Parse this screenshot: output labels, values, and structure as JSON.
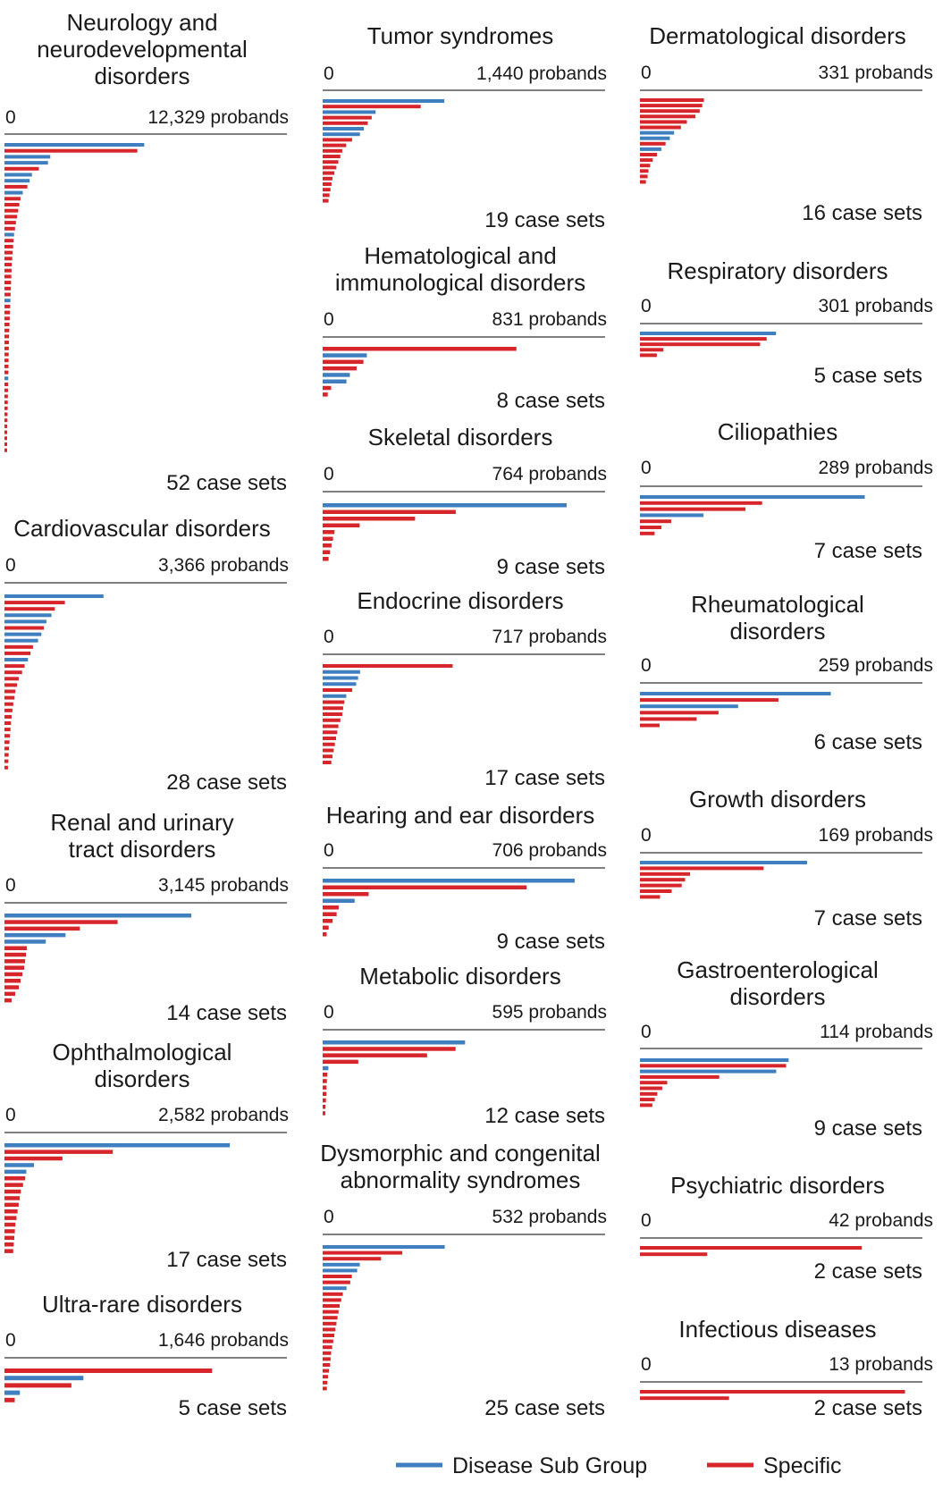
{
  "chart_data": [
    {
      "type": "bar",
      "title": "Neurology and neurodevelopmental disorders",
      "axis_min_label": "0",
      "max_label": "12,329 probands",
      "xlim": [
        0,
        12329
      ],
      "case_sets_label": "52 case sets",
      "bars": [
        [
          "b",
          6100
        ],
        [
          "r",
          5800
        ],
        [
          "b",
          2000
        ],
        [
          "b",
          1900
        ],
        [
          "r",
          1500
        ],
        [
          "b",
          1200
        ],
        [
          "b",
          1100
        ],
        [
          "r",
          1000
        ],
        [
          "b",
          800
        ],
        [
          "r",
          700
        ],
        [
          "r",
          650
        ],
        [
          "r",
          600
        ],
        [
          "r",
          550
        ],
        [
          "r",
          500
        ],
        [
          "r",
          460
        ],
        [
          "b",
          420
        ],
        [
          "r",
          400
        ],
        [
          "r",
          380
        ],
        [
          "r",
          360
        ],
        [
          "r",
          340
        ],
        [
          "r",
          320
        ],
        [
          "r",
          310
        ],
        [
          "r",
          300
        ],
        [
          "r",
          290
        ],
        [
          "r",
          280
        ],
        [
          "r",
          270
        ],
        [
          "b",
          260
        ],
        [
          "r",
          250
        ],
        [
          "r",
          240
        ],
        [
          "r",
          230
        ],
        [
          "r",
          220
        ],
        [
          "r",
          210
        ],
        [
          "r",
          200
        ],
        [
          "r",
          195
        ],
        [
          "r",
          190
        ],
        [
          "r",
          185
        ],
        [
          "r",
          180
        ],
        [
          "r",
          175
        ],
        [
          "r",
          170
        ],
        [
          "b",
          165
        ],
        [
          "r",
          160
        ],
        [
          "r",
          155
        ],
        [
          "r",
          150
        ],
        [
          "r",
          145
        ],
        [
          "r",
          140
        ],
        [
          "r",
          135
        ],
        [
          "r",
          130
        ],
        [
          "r",
          125
        ],
        [
          "r",
          120
        ],
        [
          "r",
          115
        ],
        [
          "r",
          110
        ],
        [
          "r",
          105
        ]
      ]
    },
    {
      "type": "bar",
      "title": "Cardiovascular disorders",
      "axis_min_label": "0",
      "max_label": "3,366 probands",
      "xlim": [
        0,
        3366
      ],
      "case_sets_label": "28 case sets",
      "bars": [
        [
          "b",
          1180
        ],
        [
          "r",
          720
        ],
        [
          "r",
          600
        ],
        [
          "b",
          560
        ],
        [
          "b",
          500
        ],
        [
          "r",
          470
        ],
        [
          "b",
          440
        ],
        [
          "b",
          400
        ],
        [
          "r",
          340
        ],
        [
          "r",
          310
        ],
        [
          "b",
          280
        ],
        [
          "r",
          240
        ],
        [
          "r",
          210
        ],
        [
          "r",
          170
        ],
        [
          "r",
          150
        ],
        [
          "r",
          130
        ],
        [
          "r",
          120
        ],
        [
          "r",
          105
        ],
        [
          "r",
          95
        ],
        [
          "r",
          85
        ],
        [
          "r",
          78
        ],
        [
          "r",
          72
        ],
        [
          "r",
          66
        ],
        [
          "r",
          60
        ],
        [
          "r",
          55
        ],
        [
          "r",
          50
        ],
        [
          "r",
          46
        ],
        [
          "r",
          42
        ]
      ]
    },
    {
      "type": "bar",
      "title": "Renal and urinary tract disorders",
      "axis_min_label": "0",
      "max_label": "3,145 probands",
      "xlim": [
        0,
        3145
      ],
      "case_sets_label": "14 case sets",
      "bars": [
        [
          "b",
          2080
        ],
        [
          "r",
          1260
        ],
        [
          "r",
          840
        ],
        [
          "b",
          680
        ],
        [
          "b",
          460
        ],
        [
          "r",
          250
        ],
        [
          "r",
          240
        ],
        [
          "r",
          230
        ],
        [
          "r",
          220
        ],
        [
          "r",
          200
        ],
        [
          "r",
          180
        ],
        [
          "r",
          160
        ],
        [
          "r",
          120
        ],
        [
          "r",
          80
        ]
      ]
    },
    {
      "type": "bar",
      "title": "Ophthalmological disorders",
      "axis_min_label": "0",
      "max_label": "2,582 probands",
      "xlim": [
        0,
        2582
      ],
      "case_sets_label": "17 case sets",
      "bars": [
        [
          "b",
          2060
        ],
        [
          "r",
          990
        ],
        [
          "r",
          530
        ],
        [
          "b",
          270
        ],
        [
          "b",
          200
        ],
        [
          "r",
          190
        ],
        [
          "r",
          170
        ],
        [
          "r",
          150
        ],
        [
          "r",
          140
        ],
        [
          "r",
          130
        ],
        [
          "r",
          120
        ],
        [
          "r",
          110
        ],
        [
          "r",
          100
        ],
        [
          "r",
          95
        ],
        [
          "r",
          90
        ],
        [
          "r",
          85
        ],
        [
          "r",
          80
        ]
      ]
    },
    {
      "type": "bar",
      "title": "Ultra-rare disorders",
      "axis_min_label": "0",
      "max_label": "1,646 probands",
      "xlim": [
        0,
        1646
      ],
      "case_sets_label": "5 case sets",
      "bars": [
        [
          "r",
          1210
        ],
        [
          "b",
          460
        ],
        [
          "r",
          390
        ],
        [
          "b",
          90
        ],
        [
          "r",
          60
        ]
      ]
    },
    {
      "type": "bar",
      "title": "Tumor syndromes",
      "axis_min_label": "0",
      "max_label": "1,440 probands",
      "xlim": [
        0,
        1440
      ],
      "case_sets_label": "19 case sets",
      "bars": [
        [
          "b",
          620
        ],
        [
          "r",
          500
        ],
        [
          "b",
          270
        ],
        [
          "r",
          250
        ],
        [
          "r",
          230
        ],
        [
          "b",
          210
        ],
        [
          "b",
          190
        ],
        [
          "r",
          150
        ],
        [
          "r",
          120
        ],
        [
          "r",
          100
        ],
        [
          "r",
          90
        ],
        [
          "r",
          80
        ],
        [
          "r",
          70
        ],
        [
          "r",
          60
        ],
        [
          "r",
          50
        ],
        [
          "r",
          45
        ],
        [
          "r",
          40
        ],
        [
          "r",
          35
        ],
        [
          "r",
          30
        ]
      ]
    },
    {
      "type": "bar",
      "title": "Hematological and immunological disorders",
      "axis_min_label": "0",
      "max_label": "831 probands",
      "xlim": [
        0,
        831
      ],
      "case_sets_label": "8 case sets",
      "bars": [
        [
          "r",
          570
        ],
        [
          "b",
          130
        ],
        [
          "r",
          120
        ],
        [
          "r",
          100
        ],
        [
          "b",
          80
        ],
        [
          "b",
          70
        ],
        [
          "r",
          25
        ],
        [
          "r",
          15
        ]
      ]
    },
    {
      "type": "bar",
      "title": "Skeletal disorders",
      "axis_min_label": "0",
      "max_label": "764 probands",
      "xlim": [
        0,
        764
      ],
      "case_sets_label": "9 case sets",
      "bars": [
        [
          "b",
          660
        ],
        [
          "r",
          360
        ],
        [
          "r",
          250
        ],
        [
          "r",
          100
        ],
        [
          "r",
          32
        ],
        [
          "r",
          28
        ],
        [
          "r",
          24
        ],
        [
          "r",
          20
        ],
        [
          "r",
          16
        ]
      ]
    },
    {
      "type": "bar",
      "title": "Endocrine disorders",
      "axis_min_label": "0",
      "max_label": "717 probands",
      "xlim": [
        0,
        717
      ],
      "case_sets_label": "17 case sets",
      "bars": [
        [
          "r",
          330
        ],
        [
          "b",
          95
        ],
        [
          "b",
          90
        ],
        [
          "b",
          85
        ],
        [
          "r",
          75
        ],
        [
          "b",
          60
        ],
        [
          "r",
          55
        ],
        [
          "r",
          52
        ],
        [
          "r",
          50
        ],
        [
          "r",
          45
        ],
        [
          "r",
          40
        ],
        [
          "r",
          37
        ],
        [
          "r",
          34
        ],
        [
          "r",
          31
        ],
        [
          "r",
          28
        ],
        [
          "r",
          25
        ],
        [
          "r",
          22
        ]
      ]
    },
    {
      "type": "bar",
      "title": "Hearing and ear disorders",
      "axis_min_label": "0",
      "max_label": "706 probands",
      "xlim": [
        0,
        706
      ],
      "case_sets_label": "9 case sets",
      "bars": [
        [
          "b",
          630
        ],
        [
          "r",
          510
        ],
        [
          "r",
          115
        ],
        [
          "b",
          80
        ],
        [
          "r",
          40
        ],
        [
          "r",
          35
        ],
        [
          "r",
          25
        ],
        [
          "r",
          15
        ],
        [
          "r",
          10
        ]
      ]
    },
    {
      "type": "bar",
      "title": "Metabolic disorders",
      "axis_min_label": "0",
      "max_label": "595 probands",
      "xlim": [
        0,
        595
      ],
      "case_sets_label": "12 case sets",
      "bars": [
        [
          "b",
          300
        ],
        [
          "r",
          280
        ],
        [
          "r",
          220
        ],
        [
          "r",
          75
        ],
        [
          "b",
          12
        ],
        [
          "r",
          10
        ],
        [
          "r",
          9
        ],
        [
          "r",
          8
        ],
        [
          "r",
          8
        ],
        [
          "r",
          7
        ],
        [
          "r",
          6
        ],
        [
          "r",
          5
        ]
      ]
    },
    {
      "type": "bar",
      "title": "Dysmorphic and congenital abnormality syndromes",
      "axis_min_label": "0",
      "max_label": "532 probands",
      "xlim": [
        0,
        532
      ],
      "case_sets_label": "25 case sets",
      "bars": [
        [
          "b",
          230
        ],
        [
          "r",
          150
        ],
        [
          "r",
          110
        ],
        [
          "b",
          70
        ],
        [
          "b",
          65
        ],
        [
          "r",
          55
        ],
        [
          "r",
          52
        ],
        [
          "b",
          45
        ],
        [
          "r",
          38
        ],
        [
          "r",
          35
        ],
        [
          "r",
          32
        ],
        [
          "r",
          30
        ],
        [
          "r",
          28
        ],
        [
          "r",
          26
        ],
        [
          "r",
          24
        ],
        [
          "r",
          22
        ],
        [
          "r",
          20
        ],
        [
          "r",
          18
        ],
        [
          "r",
          16
        ],
        [
          "r",
          15
        ],
        [
          "r",
          14
        ],
        [
          "r",
          12
        ],
        [
          "r",
          10
        ],
        [
          "r",
          9
        ],
        [
          "r",
          8
        ]
      ]
    },
    {
      "type": "bar",
      "title": "Dermatological disorders",
      "axis_min_label": "0",
      "max_label": "331 probands",
      "xlim": [
        0,
        331
      ],
      "case_sets_label": "16 case sets",
      "bars": [
        [
          "r",
          75
        ],
        [
          "r",
          73
        ],
        [
          "r",
          70
        ],
        [
          "r",
          65
        ],
        [
          "r",
          55
        ],
        [
          "r",
          48
        ],
        [
          "b",
          40
        ],
        [
          "b",
          35
        ],
        [
          "r",
          30
        ],
        [
          "b",
          25
        ],
        [
          "r",
          20
        ],
        [
          "r",
          15
        ],
        [
          "r",
          12
        ],
        [
          "r",
          10
        ],
        [
          "r",
          9
        ],
        [
          "r",
          7
        ]
      ]
    },
    {
      "type": "bar",
      "title": "Respiratory disorders",
      "axis_min_label": "0",
      "max_label": "301 probands",
      "xlim": [
        0,
        301
      ],
      "case_sets_label": "5 case sets",
      "bars": [
        [
          "b",
          145
        ],
        [
          "r",
          135
        ],
        [
          "r",
          128
        ],
        [
          "r",
          25
        ],
        [
          "r",
          18
        ]
      ]
    },
    {
      "type": "bar",
      "title": "Ciliopathies",
      "axis_min_label": "0",
      "max_label": "289 probands",
      "xlim": [
        0,
        289
      ],
      "case_sets_label": "7 case sets",
      "bars": [
        [
          "b",
          230
        ],
        [
          "r",
          125
        ],
        [
          "r",
          108
        ],
        [
          "b",
          65
        ],
        [
          "r",
          32
        ],
        [
          "r",
          22
        ],
        [
          "r",
          15
        ]
      ]
    },
    {
      "type": "bar",
      "title": "Rheumatological disorders",
      "axis_min_label": "0",
      "max_label": "259 probands",
      "xlim": [
        0,
        259
      ],
      "case_sets_label": "6 case sets",
      "bars": [
        [
          "b",
          175
        ],
        [
          "r",
          127
        ],
        [
          "b",
          90
        ],
        [
          "r",
          72
        ],
        [
          "r",
          52
        ],
        [
          "r",
          18
        ]
      ]
    },
    {
      "type": "bar",
      "title": "Growth disorders",
      "axis_min_label": "0",
      "max_label": "169 probands",
      "xlim": [
        0,
        169
      ],
      "case_sets_label": "7 case sets",
      "bars": [
        [
          "b",
          100
        ],
        [
          "r",
          74
        ],
        [
          "r",
          30
        ],
        [
          "r",
          27
        ],
        [
          "r",
          25
        ],
        [
          "r",
          19
        ],
        [
          "r",
          12
        ]
      ]
    },
    {
      "type": "bar",
      "title": "Gastroenterological disorders",
      "axis_min_label": "0",
      "max_label": "114 probands",
      "xlim": [
        0,
        114
      ],
      "case_sets_label": "9 case sets",
      "bars": [
        [
          "b",
          60
        ],
        [
          "r",
          59
        ],
        [
          "b",
          55
        ],
        [
          "r",
          32
        ],
        [
          "r",
          11
        ],
        [
          "r",
          9
        ],
        [
          "r",
          7
        ],
        [
          "r",
          6
        ],
        [
          "r",
          5
        ]
      ]
    },
    {
      "type": "bar",
      "title": "Psychiatric disorders",
      "axis_min_label": "0",
      "max_label": "42 probands",
      "xlim": [
        0,
        42
      ],
      "case_sets_label": "2 case sets",
      "bars": [
        [
          "r",
          33
        ],
        [
          "r",
          10
        ]
      ]
    },
    {
      "type": "bar",
      "title": "Infectious diseases",
      "axis_min_label": "0",
      "max_label": "13 probands",
      "xlim": [
        0,
        13
      ],
      "case_sets_label": "2 case sets",
      "bars": [
        [
          "r",
          12.2
        ],
        [
          "r",
          4.1
        ]
      ]
    }
  ],
  "legend": {
    "items": [
      {
        "label": "Disease Sub Group",
        "key": "b"
      },
      {
        "label": "Specific",
        "key": "r"
      }
    ]
  },
  "colors": {
    "b": "#3f7fbf",
    "r": "#d7262b",
    "axis": "#555555"
  }
}
